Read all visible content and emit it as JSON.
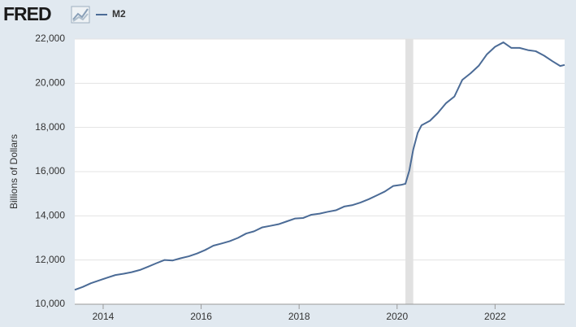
{
  "logo": "FRED",
  "chart_data": {
    "type": "line",
    "ylabel": "Billions of Dollars",
    "x": [
      2013.42,
      2013.58,
      2013.75,
      2013.92,
      2014.08,
      2014.25,
      2014.42,
      2014.58,
      2014.75,
      2014.92,
      2015.08,
      2015.25,
      2015.42,
      2015.58,
      2015.75,
      2015.92,
      2016.08,
      2016.25,
      2016.42,
      2016.58,
      2016.75,
      2016.92,
      2017.08,
      2017.25,
      2017.42,
      2017.58,
      2017.75,
      2017.92,
      2018.08,
      2018.25,
      2018.42,
      2018.58,
      2018.75,
      2018.92,
      2019.08,
      2019.25,
      2019.42,
      2019.58,
      2019.75,
      2019.92,
      2020.08,
      2020.17,
      2020.25,
      2020.33,
      2020.42,
      2020.5,
      2020.67,
      2020.83,
      2021.0,
      2021.17,
      2021.33,
      2021.5,
      2021.67,
      2021.83,
      2022.0,
      2022.17,
      2022.33,
      2022.5,
      2022.67,
      2022.83,
      2023.0,
      2023.17,
      2023.33,
      2023.42
    ],
    "series": [
      {
        "name": "M2",
        "color": "#4b6b96",
        "values": [
          10650,
          10780,
          10950,
          11080,
          11200,
          11320,
          11380,
          11450,
          11550,
          11700,
          11850,
          12000,
          11980,
          12080,
          12170,
          12300,
          12450,
          12650,
          12750,
          12850,
          13000,
          13200,
          13300,
          13480,
          13550,
          13620,
          13750,
          13880,
          13900,
          14050,
          14100,
          14180,
          14250,
          14420,
          14480,
          14600,
          14750,
          14920,
          15100,
          15350,
          15400,
          15450,
          16050,
          17000,
          17750,
          18100,
          18300,
          18650,
          19100,
          19400,
          20150,
          20450,
          20800,
          21300,
          21650,
          21850,
          21600,
          21600,
          21500,
          21450,
          21250,
          21000,
          20780,
          20830
        ]
      }
    ],
    "recessions": [
      {
        "start": 2020.17,
        "end": 2020.33
      }
    ],
    "xlim": [
      2013.42,
      2023.42
    ],
    "xticks": [
      2014,
      2016,
      2018,
      2020,
      2022
    ],
    "ylim": [
      10000,
      22000
    ],
    "yticks": [
      {
        "value": 10000,
        "label": "10,000"
      },
      {
        "value": 12000,
        "label": "12,000"
      },
      {
        "value": 14000,
        "label": "14,000"
      },
      {
        "value": 16000,
        "label": "16,000"
      },
      {
        "value": 18000,
        "label": "18,000"
      },
      {
        "value": 20000,
        "label": "20,000"
      },
      {
        "value": 22000,
        "label": "22,000"
      }
    ],
    "grid": true
  }
}
